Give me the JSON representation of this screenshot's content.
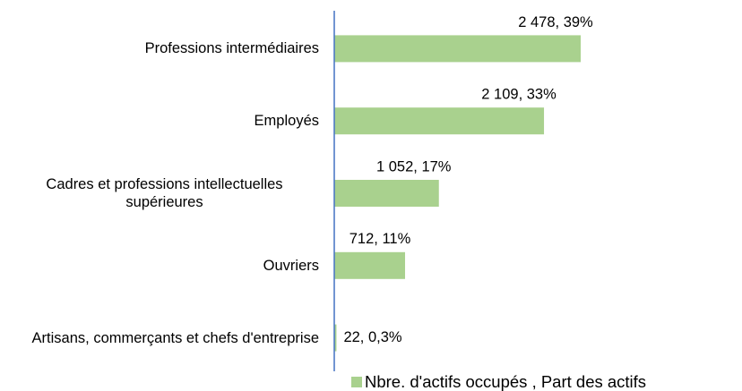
{
  "chart_data": {
    "type": "bar",
    "orientation": "horizontal",
    "categories": [
      "Professions intermédiaires",
      "Employés",
      "Cadres et professions intellectuelles supérieures",
      "Ouvriers",
      "Artisans, commerçants et chefs d'entreprise"
    ],
    "series": [
      {
        "name": "Nbre. d'actifs occupés , Part des actifs",
        "color": "#a9d18e",
        "values": [
          2478,
          2109,
          1052,
          712,
          22
        ],
        "value_labels": [
          "2 478, 39%",
          "2 109, 33%",
          "1 052, 17%",
          "712, 11%",
          "22, 0,3%"
        ]
      }
    ],
    "legend": "bottom"
  }
}
